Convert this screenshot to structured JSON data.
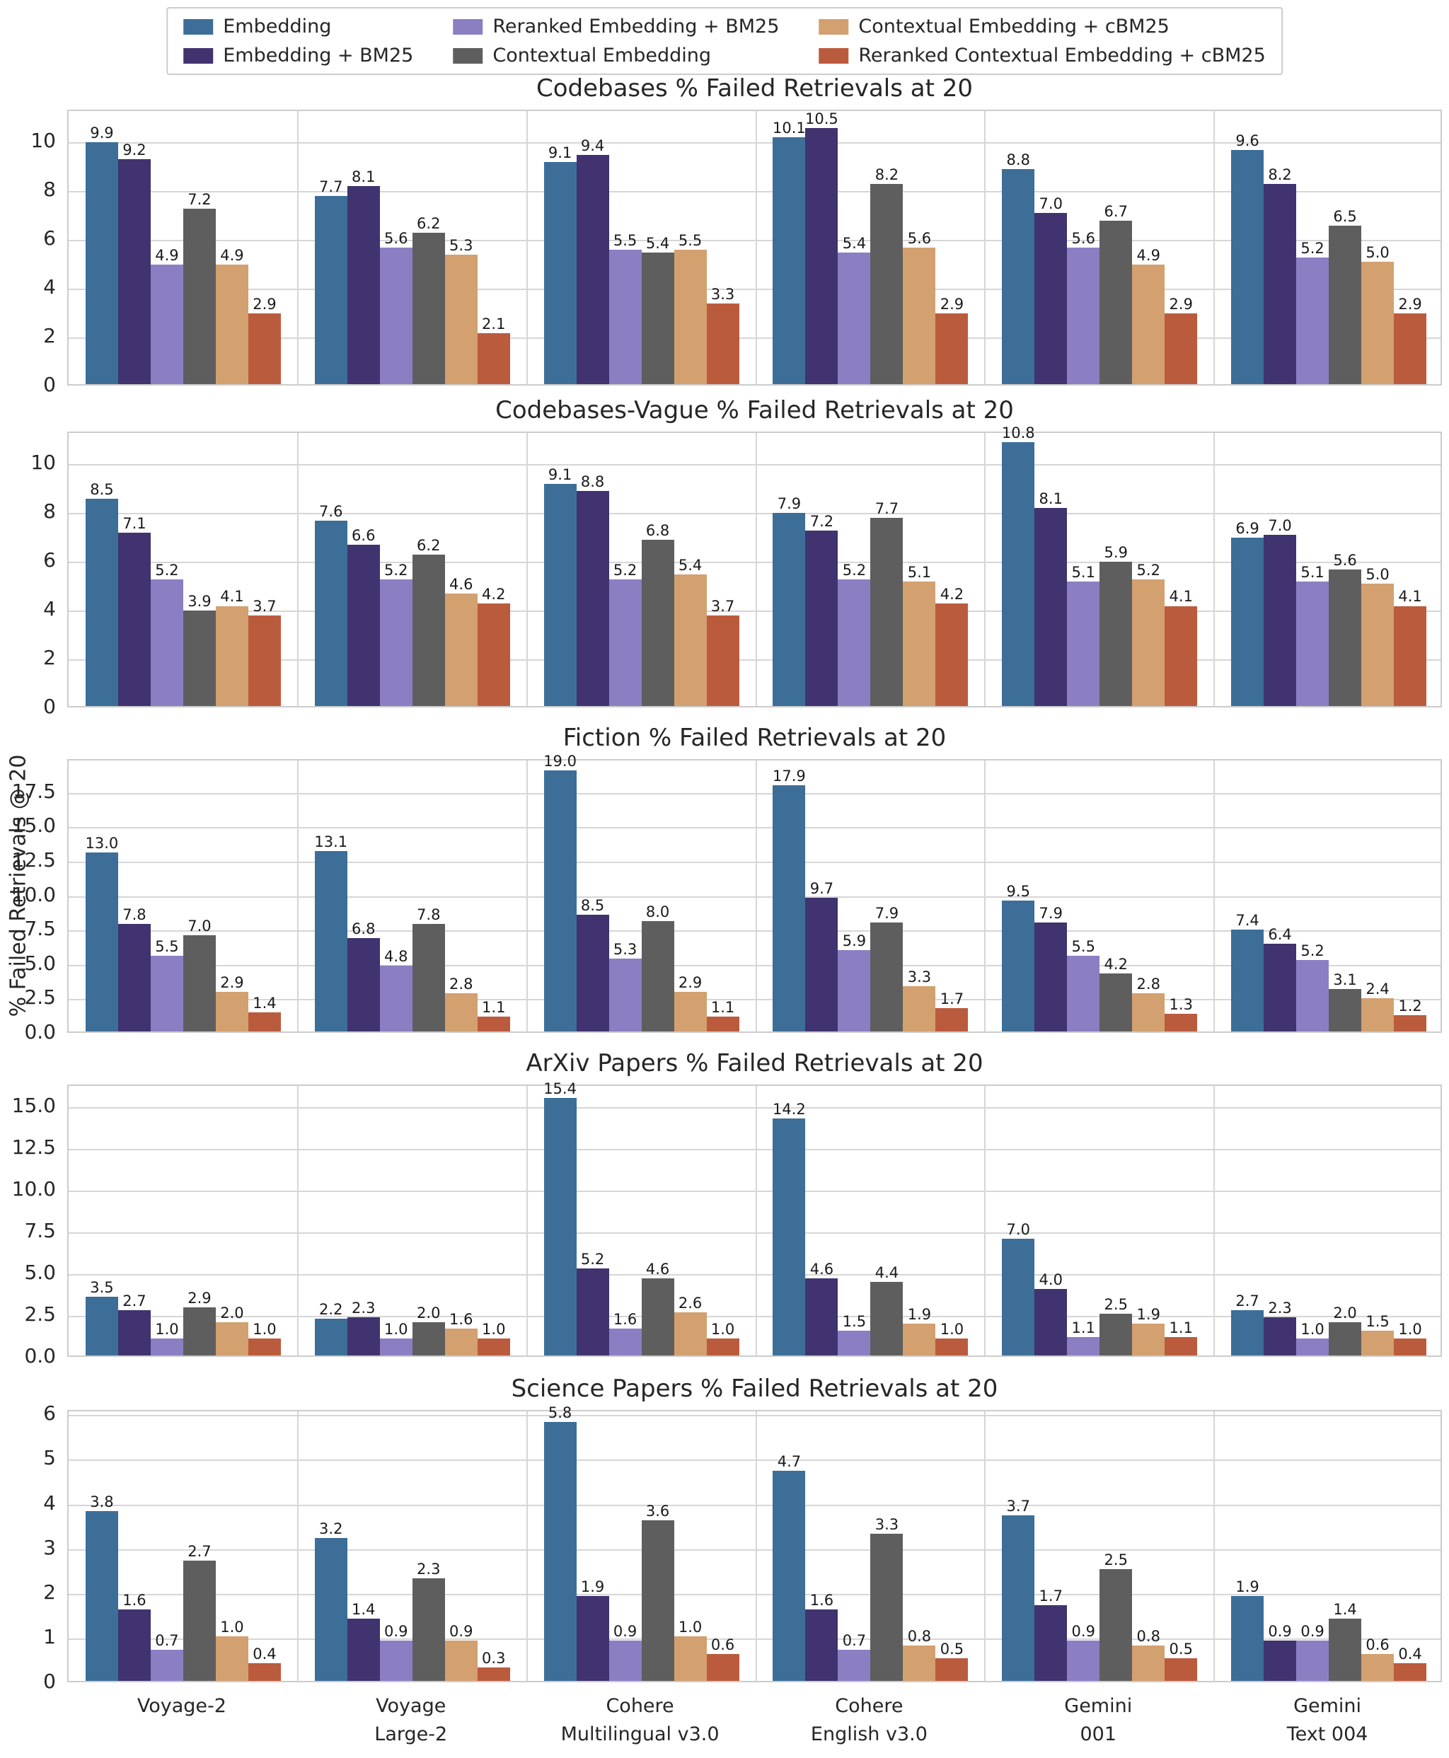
{
  "figure": {
    "y_axis_label": "% Failed Retrievals @ 20",
    "background_color": "#ffffff",
    "grid_color": "#d6d6d6",
    "categories_display": [
      [
        "Voyage-2"
      ],
      [
        "Voyage",
        "Large-2"
      ],
      [
        "Cohere",
        "Multilingual v3.0"
      ],
      [
        "Cohere",
        "English v3.0"
      ],
      [
        "Gemini",
        "001"
      ],
      [
        "Gemini",
        "Text 004"
      ]
    ],
    "legend": [
      {
        "label": "Embedding",
        "color": "#3c6e98"
      },
      {
        "label": "Embedding + BM25",
        "color": "#40336f"
      },
      {
        "label": "Reranked Embedding + BM25",
        "color": "#8c7ec3"
      },
      {
        "label": "Contextual Embedding",
        "color": "#5e5e5e"
      },
      {
        "label": "Contextual Embedding + cBM25",
        "color": "#d3a06f"
      },
      {
        "label": "Reranked Contextual Embedding + cBM25",
        "color": "#bb5b3d"
      }
    ]
  },
  "chart_data": [
    {
      "type": "bar",
      "title": "Codebases % Failed Retrievals at 20",
      "categories": [
        "Voyage-2",
        "Voyage Large-2",
        "Cohere Multilingual v3.0",
        "Cohere English v3.0",
        "Gemini 001",
        "Gemini Text 004"
      ],
      "ylim": [
        0,
        11.3
      ],
      "ytick_values": [
        0,
        2,
        4,
        6,
        8,
        10
      ],
      "ytick_labels": [
        "0",
        "2",
        "4",
        "6",
        "8",
        "10"
      ],
      "grid": true,
      "series": [
        {
          "name": "Embedding",
          "values": [
            9.9,
            7.7,
            9.1,
            10.1,
            8.8,
            9.6
          ]
        },
        {
          "name": "Embedding + BM25",
          "values": [
            9.2,
            8.1,
            9.4,
            10.5,
            7.0,
            8.2
          ]
        },
        {
          "name": "Reranked Embedding + BM25",
          "values": [
            4.9,
            5.6,
            5.5,
            5.4,
            5.6,
            5.2
          ]
        },
        {
          "name": "Contextual Embedding",
          "values": [
            7.2,
            6.2,
            5.4,
            8.2,
            6.7,
            6.5
          ]
        },
        {
          "name": "Contextual Embedding + cBM25",
          "values": [
            4.9,
            5.3,
            5.5,
            5.6,
            4.9,
            5.0
          ]
        },
        {
          "name": "Reranked Contextual Embedding + cBM25",
          "values": [
            2.9,
            2.1,
            3.3,
            2.9,
            2.9,
            2.9
          ]
        }
      ]
    },
    {
      "type": "bar",
      "title": "Codebases-Vague % Failed Retrievals at 20",
      "categories": [
        "Voyage-2",
        "Voyage Large-2",
        "Cohere Multilingual v3.0",
        "Cohere English v3.0",
        "Gemini 001",
        "Gemini Text 004"
      ],
      "ylim": [
        0,
        11.3
      ],
      "ytick_values": [
        0,
        2,
        4,
        6,
        8,
        10
      ],
      "ytick_labels": [
        "0",
        "2",
        "4",
        "6",
        "8",
        "10"
      ],
      "grid": true,
      "series": [
        {
          "name": "Embedding",
          "values": [
            8.5,
            7.6,
            9.1,
            7.9,
            10.8,
            6.9
          ]
        },
        {
          "name": "Embedding + BM25",
          "values": [
            7.1,
            6.6,
            8.8,
            7.2,
            8.1,
            7.0
          ]
        },
        {
          "name": "Reranked Embedding + BM25",
          "values": [
            5.2,
            5.2,
            5.2,
            5.2,
            5.1,
            5.1
          ]
        },
        {
          "name": "Contextual Embedding",
          "values": [
            3.9,
            6.2,
            6.8,
            7.7,
            5.9,
            5.6
          ]
        },
        {
          "name": "Contextual Embedding + cBM25",
          "values": [
            4.1,
            4.6,
            5.4,
            5.1,
            5.2,
            5.0
          ]
        },
        {
          "name": "Reranked Contextual Embedding + cBM25",
          "values": [
            3.7,
            4.2,
            3.7,
            4.2,
            4.1,
            4.1
          ]
        }
      ]
    },
    {
      "type": "bar",
      "title": "Fiction % Failed Retrievals at 20",
      "categories": [
        "Voyage-2",
        "Voyage Large-2",
        "Cohere Multilingual v3.0",
        "Cohere English v3.0",
        "Gemini 001",
        "Gemini Text 004"
      ],
      "ylim": [
        0,
        19.9
      ],
      "ytick_values": [
        0,
        2.5,
        5,
        7.5,
        10,
        12.5,
        15,
        17.5
      ],
      "ytick_labels": [
        "0.0",
        "2.5",
        "5.0",
        "7.5",
        "10.0",
        "12.5",
        "15.0",
        "17.5"
      ],
      "grid": true,
      "series": [
        {
          "name": "Embedding",
          "values": [
            13.0,
            13.1,
            19.0,
            17.9,
            9.5,
            7.4
          ]
        },
        {
          "name": "Embedding + BM25",
          "values": [
            7.8,
            6.8,
            8.5,
            9.7,
            7.9,
            6.4
          ]
        },
        {
          "name": "Reranked Embedding + BM25",
          "values": [
            5.5,
            4.8,
            5.3,
            5.9,
            5.5,
            5.2
          ]
        },
        {
          "name": "Contextual Embedding",
          "values": [
            7.0,
            7.8,
            8.0,
            7.9,
            4.2,
            3.1
          ]
        },
        {
          "name": "Contextual Embedding + cBM25",
          "values": [
            2.9,
            2.8,
            2.9,
            3.3,
            2.8,
            2.4
          ]
        },
        {
          "name": "Reranked Contextual Embedding + cBM25",
          "values": [
            1.4,
            1.1,
            1.1,
            1.7,
            1.3,
            1.2
          ]
        }
      ]
    },
    {
      "type": "bar",
      "title": "ArXiv Papers % Failed Retrievals at 20",
      "categories": [
        "Voyage-2",
        "Voyage Large-2",
        "Cohere Multilingual v3.0",
        "Cohere English v3.0",
        "Gemini 001",
        "Gemini Text 004"
      ],
      "ylim": [
        0,
        16.3
      ],
      "ytick_values": [
        0,
        2.5,
        5,
        7.5,
        10,
        12.5,
        15
      ],
      "ytick_labels": [
        "0.0",
        "2.5",
        "5.0",
        "7.5",
        "10.0",
        "12.5",
        "15.0"
      ],
      "grid": true,
      "series": [
        {
          "name": "Embedding",
          "values": [
            3.5,
            2.2,
            15.4,
            14.2,
            7.0,
            2.7
          ]
        },
        {
          "name": "Embedding + BM25",
          "values": [
            2.7,
            2.3,
            5.2,
            4.6,
            4.0,
            2.3
          ]
        },
        {
          "name": "Reranked Embedding + BM25",
          "values": [
            1.0,
            1.0,
            1.6,
            1.5,
            1.1,
            1.0
          ]
        },
        {
          "name": "Contextual Embedding",
          "values": [
            2.9,
            2.0,
            4.6,
            4.4,
            2.5,
            2.0
          ]
        },
        {
          "name": "Contextual Embedding + cBM25",
          "values": [
            2.0,
            1.6,
            2.6,
            1.9,
            1.9,
            1.5
          ]
        },
        {
          "name": "Reranked Contextual Embedding + cBM25",
          "values": [
            1.0,
            1.0,
            1.0,
            1.0,
            1.1,
            1.0
          ]
        }
      ]
    },
    {
      "type": "bar",
      "title": "Science Papers % Failed Retrievals at 20",
      "categories": [
        "Voyage-2",
        "Voyage Large-2",
        "Cohere Multilingual v3.0",
        "Cohere English v3.0",
        "Gemini 001",
        "Gemini Text 004"
      ],
      "ylim": [
        0,
        6.1
      ],
      "ytick_values": [
        0,
        1,
        2,
        3,
        4,
        5,
        6
      ],
      "ytick_labels": [
        "0",
        "1",
        "2",
        "3",
        "4",
        "5",
        "6"
      ],
      "grid": true,
      "series": [
        {
          "name": "Embedding",
          "values": [
            3.8,
            3.2,
            5.8,
            4.7,
            3.7,
            1.9
          ]
        },
        {
          "name": "Embedding + BM25",
          "values": [
            1.6,
            1.4,
            1.9,
            1.6,
            1.7,
            0.9
          ]
        },
        {
          "name": "Reranked Embedding + BM25",
          "values": [
            0.7,
            0.9,
            0.9,
            0.7,
            0.9,
            0.9
          ]
        },
        {
          "name": "Contextual Embedding",
          "values": [
            2.7,
            2.3,
            3.6,
            3.3,
            2.5,
            1.4
          ]
        },
        {
          "name": "Contextual Embedding + cBM25",
          "values": [
            1.0,
            0.9,
            1.0,
            0.8,
            0.8,
            0.6
          ]
        },
        {
          "name": "Reranked Contextual Embedding + cBM25",
          "values": [
            0.4,
            0.3,
            0.6,
            0.5,
            0.5,
            0.4
          ]
        }
      ]
    }
  ]
}
